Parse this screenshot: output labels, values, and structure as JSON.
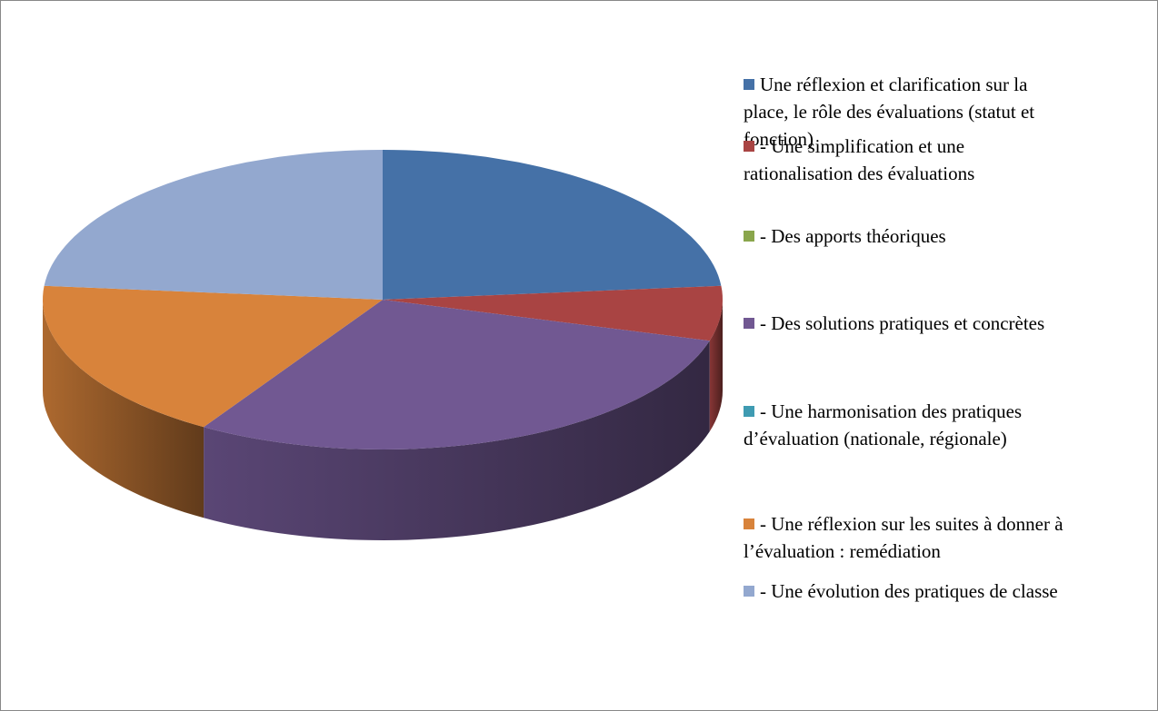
{
  "chart_data": {
    "type": "pie3d",
    "categories": [
      "Une réflexion et clarification sur la place, le rôle des évaluations (statut et fonction)",
      "- Une simplification et une rationalisation des évaluations",
      "- Des apports théoriques",
      "-  Des solutions pratiques et concrètes",
      "- Une harmonisation des pratiques d’évaluation (nationale, régionale)",
      "- Une réflexion sur les suites à donner à l’évaluation : remédiation",
      "- Une évolution des pratiques de classe"
    ],
    "values": [
      8,
      2,
      0,
      10,
      0,
      6,
      8
    ],
    "colors": [
      "#4571a7",
      "#a94443",
      "#8aa64c",
      "#715892",
      "#3f9bb2",
      "#d8833b",
      "#93a8cf"
    ],
    "legend": "right"
  }
}
